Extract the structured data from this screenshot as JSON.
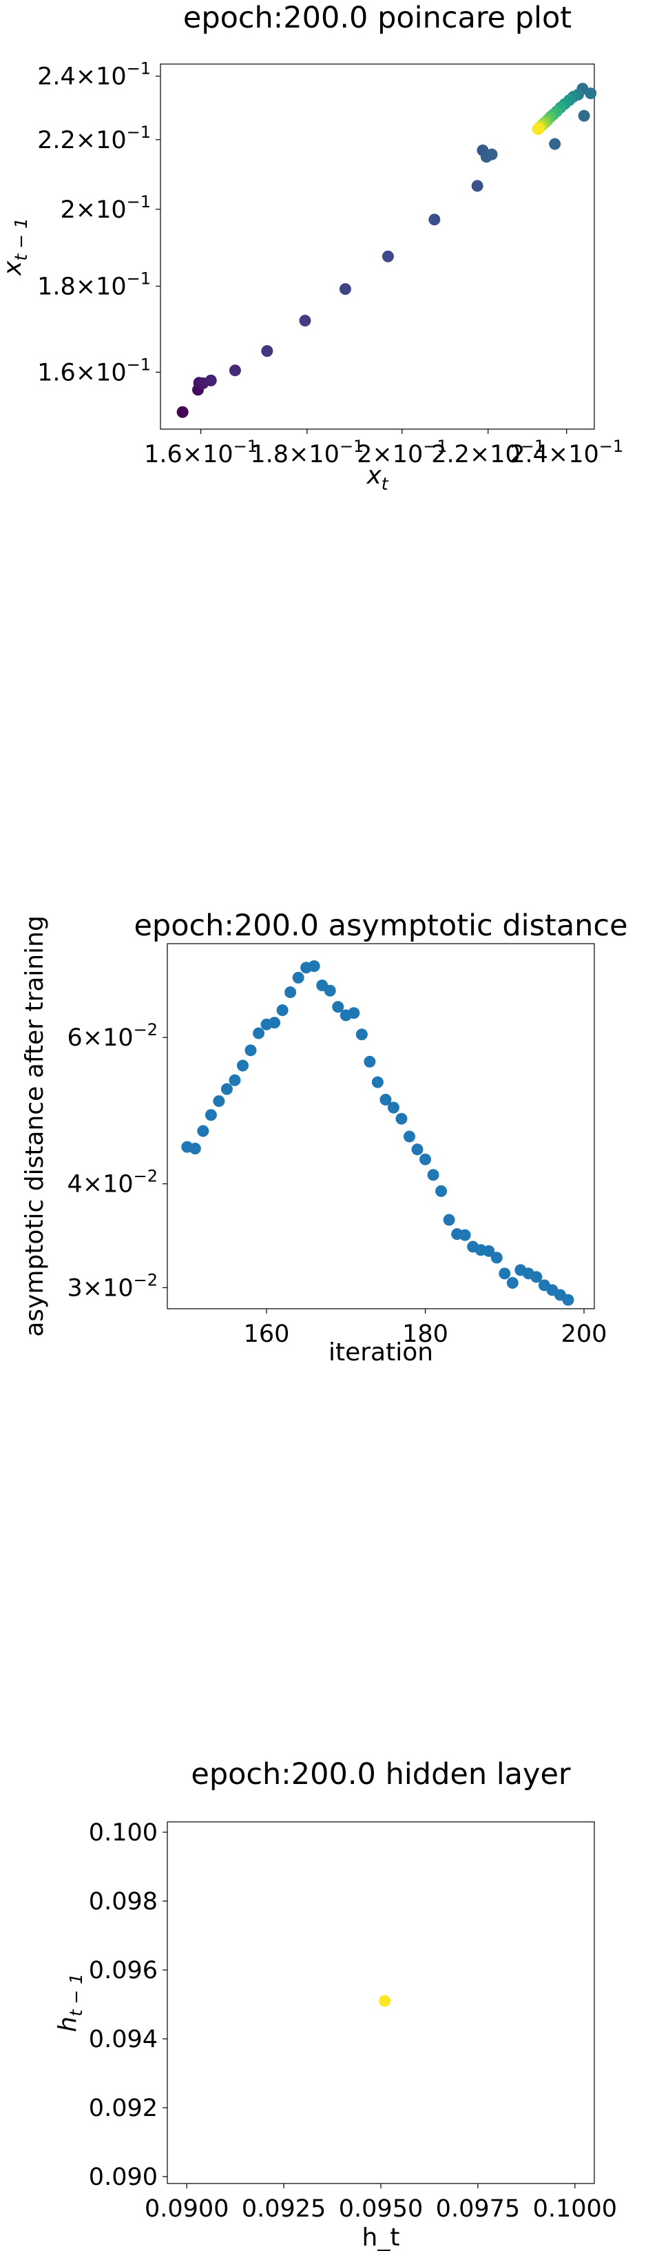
{
  "chart_data": [
    {
      "type": "scatter",
      "title": "epoch:200.0 poincare plot",
      "xlabel": "x",
      "xlabel_sub": "t",
      "ylabel": "x",
      "ylabel_sub": "t − 1",
      "xscale": "log",
      "yscale": "log",
      "xlim": [
        0.153,
        0.2475
      ],
      "ylim": [
        0.148,
        0.244
      ],
      "xticks": [
        {
          "value": 0.16,
          "mant": "1.6",
          "base": "×10",
          "exp": "−1"
        },
        {
          "value": 0.18,
          "mant": "1.8",
          "base": "×10",
          "exp": "−1"
        },
        {
          "value": 0.2,
          "mant": "2",
          "base": "×10",
          "exp": "−1"
        },
        {
          "value": 0.22,
          "mant": "2.2",
          "base": "×10",
          "exp": "−1"
        },
        {
          "value": 0.24,
          "mant": "2.4",
          "base": "×10",
          "exp": "−1"
        }
      ],
      "yticks": [
        {
          "value": 0.16,
          "mant": "1.6",
          "base": "×10",
          "exp": "−1"
        },
        {
          "value": 0.18,
          "mant": "1.8",
          "base": "×10",
          "exp": "−1"
        },
        {
          "value": 0.2,
          "mant": "2",
          "base": "×10",
          "exp": "−1"
        },
        {
          "value": 0.22,
          "mant": "2.2",
          "base": "×10",
          "exp": "−1"
        },
        {
          "value": 0.24,
          "mant": "2.4",
          "base": "×10",
          "exp": "−1"
        }
      ],
      "colormap": "viridis",
      "points": [
        {
          "x": 0.1568,
          "y": 0.1515,
          "c": 0.0
        },
        {
          "x": 0.1595,
          "y": 0.1562,
          "c": 0.03
        },
        {
          "x": 0.1597,
          "y": 0.1577,
          "c": 0.05
        },
        {
          "x": 0.1604,
          "y": 0.1576,
          "c": 0.07
        },
        {
          "x": 0.1618,
          "y": 0.1582,
          "c": 0.09
        },
        {
          "x": 0.1662,
          "y": 0.1604,
          "c": 0.12
        },
        {
          "x": 0.1722,
          "y": 0.1647,
          "c": 0.15
        },
        {
          "x": 0.1796,
          "y": 0.1717,
          "c": 0.18
        },
        {
          "x": 0.1878,
          "y": 0.1793,
          "c": 0.2
        },
        {
          "x": 0.1969,
          "y": 0.1875,
          "c": 0.22
        },
        {
          "x": 0.2073,
          "y": 0.1972,
          "c": 0.24
        },
        {
          "x": 0.2174,
          "y": 0.2065,
          "c": 0.26
        },
        {
          "x": 0.2187,
          "y": 0.2168,
          "c": 0.28
        },
        {
          "x": 0.2196,
          "y": 0.2149,
          "c": 0.3
        },
        {
          "x": 0.2209,
          "y": 0.2156,
          "c": 0.31
        },
        {
          "x": 0.2369,
          "y": 0.2187,
          "c": 0.33
        },
        {
          "x": 0.2447,
          "y": 0.2273,
          "c": 0.35
        },
        {
          "x": 0.2443,
          "y": 0.2359,
          "c": 0.37
        },
        {
          "x": 0.2465,
          "y": 0.2344,
          "c": 0.4
        },
        {
          "x": 0.2431,
          "y": 0.234,
          "c": 0.44
        },
        {
          "x": 0.2418,
          "y": 0.2333,
          "c": 0.48
        },
        {
          "x": 0.2407,
          "y": 0.2322,
          "c": 0.52
        },
        {
          "x": 0.2395,
          "y": 0.231,
          "c": 0.56
        },
        {
          "x": 0.2384,
          "y": 0.2299,
          "c": 0.6
        },
        {
          "x": 0.2374,
          "y": 0.2287,
          "c": 0.64
        },
        {
          "x": 0.2365,
          "y": 0.2277,
          "c": 0.68
        },
        {
          "x": 0.2357,
          "y": 0.2269,
          "c": 0.72
        },
        {
          "x": 0.235,
          "y": 0.226,
          "c": 0.76
        },
        {
          "x": 0.2344,
          "y": 0.2253,
          "c": 0.8
        },
        {
          "x": 0.2339,
          "y": 0.2248,
          "c": 0.84
        },
        {
          "x": 0.2335,
          "y": 0.2243,
          "c": 0.88
        },
        {
          "x": 0.2331,
          "y": 0.2239,
          "c": 0.92
        },
        {
          "x": 0.2328,
          "y": 0.2235,
          "c": 0.96
        },
        {
          "x": 0.2325,
          "y": 0.2232,
          "c": 1.0
        }
      ]
    },
    {
      "type": "scatter",
      "title": "epoch:200.0 asymptotic distance",
      "xlabel": "iteration",
      "ylabel": "asymptotic distance after training",
      "xscale": "linear",
      "yscale": "log",
      "xlim": [
        147.5,
        201.3
      ],
      "ylim": [
        0.0283,
        0.0778
      ],
      "xticks": [
        {
          "value": 160,
          "label": "160"
        },
        {
          "value": 180,
          "label": "180"
        },
        {
          "value": 200,
          "label": "200"
        }
      ],
      "yticks": [
        {
          "value": 0.03,
          "mant": "3",
          "base": "×10",
          "exp": "−2"
        },
        {
          "value": 0.04,
          "mant": "4",
          "base": "×10",
          "exp": "−2"
        },
        {
          "value": 0.06,
          "mant": "6",
          "base": "×10",
          "exp": "−2"
        }
      ],
      "color": "#1f77b4",
      "points": [
        {
          "x": 150,
          "y": 0.0443
        },
        {
          "x": 151,
          "y": 0.0441
        },
        {
          "x": 152,
          "y": 0.0463
        },
        {
          "x": 153,
          "y": 0.0484
        },
        {
          "x": 154,
          "y": 0.0503
        },
        {
          "x": 155,
          "y": 0.052
        },
        {
          "x": 156,
          "y": 0.0533
        },
        {
          "x": 157,
          "y": 0.0555
        },
        {
          "x": 158,
          "y": 0.0579
        },
        {
          "x": 159,
          "y": 0.0607
        },
        {
          "x": 160,
          "y": 0.0622
        },
        {
          "x": 161,
          "y": 0.0625
        },
        {
          "x": 162,
          "y": 0.0647
        },
        {
          "x": 163,
          "y": 0.068
        },
        {
          "x": 164,
          "y": 0.0708
        },
        {
          "x": 165,
          "y": 0.0728
        },
        {
          "x": 166,
          "y": 0.0731
        },
        {
          "x": 167,
          "y": 0.0693
        },
        {
          "x": 168,
          "y": 0.0683
        },
        {
          "x": 169,
          "y": 0.0653
        },
        {
          "x": 170,
          "y": 0.0638
        },
        {
          "x": 171,
          "y": 0.0642
        },
        {
          "x": 172,
          "y": 0.0605
        },
        {
          "x": 173,
          "y": 0.0561
        },
        {
          "x": 174,
          "y": 0.053
        },
        {
          "x": 175,
          "y": 0.0505
        },
        {
          "x": 176,
          "y": 0.0494
        },
        {
          "x": 177,
          "y": 0.0479
        },
        {
          "x": 178,
          "y": 0.0456
        },
        {
          "x": 179,
          "y": 0.044
        },
        {
          "x": 180,
          "y": 0.0428
        },
        {
          "x": 181,
          "y": 0.041
        },
        {
          "x": 182,
          "y": 0.0392
        },
        {
          "x": 183,
          "y": 0.0362
        },
        {
          "x": 184,
          "y": 0.0348
        },
        {
          "x": 185,
          "y": 0.0347
        },
        {
          "x": 186,
          "y": 0.0336
        },
        {
          "x": 187,
          "y": 0.0333
        },
        {
          "x": 188,
          "y": 0.0332
        },
        {
          "x": 189,
          "y": 0.0326
        },
        {
          "x": 190,
          "y": 0.0312
        },
        {
          "x": 191,
          "y": 0.0304
        },
        {
          "x": 192,
          "y": 0.0315
        },
        {
          "x": 193,
          "y": 0.0312
        },
        {
          "x": 194,
          "y": 0.0309
        },
        {
          "x": 195,
          "y": 0.0302
        },
        {
          "x": 196,
          "y": 0.0298
        },
        {
          "x": 197,
          "y": 0.0294
        },
        {
          "x": 198,
          "y": 0.029
        }
      ]
    },
    {
      "type": "scatter",
      "title": "epoch:200.0 hidden layer",
      "xlabel": "h_t",
      "ylabel": "h",
      "ylabel_sub": "t − 1",
      "xscale": "linear",
      "yscale": "linear",
      "xlim": [
        0.0895,
        0.1005
      ],
      "ylim": [
        0.0898,
        0.1003
      ],
      "xticks": [
        {
          "value": 0.09,
          "label": "0.0900"
        },
        {
          "value": 0.0925,
          "label": "0.0925"
        },
        {
          "value": 0.095,
          "label": "0.0950"
        },
        {
          "value": 0.0975,
          "label": "0.0975"
        },
        {
          "value": 0.1,
          "label": "0.1000"
        }
      ],
      "yticks": [
        {
          "value": 0.09,
          "label": "0.090"
        },
        {
          "value": 0.092,
          "label": "0.092"
        },
        {
          "value": 0.094,
          "label": "0.094"
        },
        {
          "value": 0.096,
          "label": "0.096"
        },
        {
          "value": 0.098,
          "label": "0.098"
        },
        {
          "value": 0.1,
          "label": "0.100"
        }
      ],
      "color": "#fde725",
      "points": [
        {
          "x": 0.0951,
          "y": 0.0951
        }
      ]
    }
  ]
}
